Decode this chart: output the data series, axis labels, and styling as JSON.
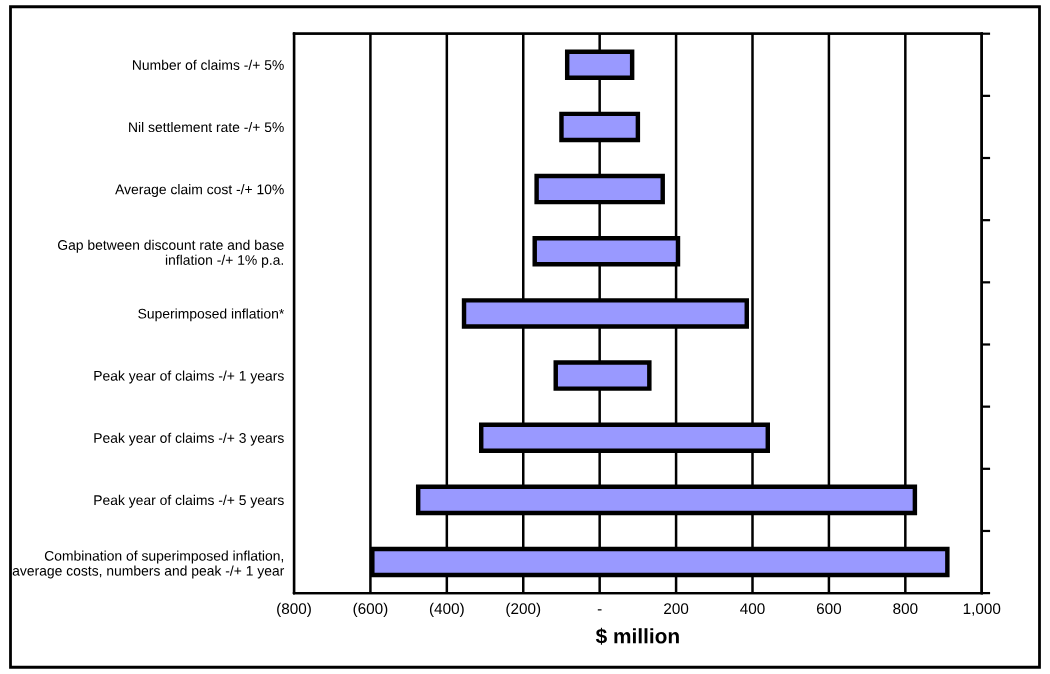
{
  "chart_data": {
    "type": "bar",
    "orientation": "horizontal",
    "xlabel": "$ million",
    "categories": [
      "Number of claims -/+ 5%",
      "Nil settlement rate -/+ 5%",
      "Average claim cost -/+ 10%",
      "Gap between discount rate and base\ninflation -/+ 1% p.a.",
      "Superimposed inflation*",
      "Peak year of claims -/+ 1 years",
      "Peak year of claims -/+ 3 years",
      "Peak year of claims -/+ 5 years",
      "Combination of superimposed inflation,\naverage costs, numbers and peak -/+ 1 year"
    ],
    "base": [
      -85,
      -100,
      -165,
      -170,
      -355,
      -115,
      -310,
      -475,
      -595
    ],
    "values": [
      170,
      200,
      330,
      375,
      740,
      245,
      750,
      1300,
      1505
    ],
    "color": "#9999ff",
    "xlim": [
      -800,
      1000
    ],
    "xticks": [
      {
        "value": -800,
        "label": "(800)"
      },
      {
        "value": -600,
        "label": "(600)"
      },
      {
        "value": -400,
        "label": "(400)"
      },
      {
        "value": -200,
        "label": "(200)"
      },
      {
        "value": 0,
        "label": "-"
      },
      200,
      400,
      600,
      800,
      {
        "value": 1000,
        "label": "1,000"
      }
    ],
    "grid": "x",
    "legend": false
  }
}
